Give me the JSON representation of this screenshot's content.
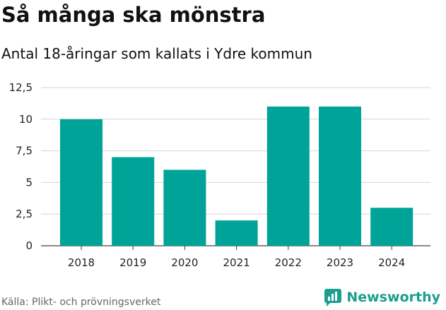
{
  "title": "Så många ska mönstra",
  "subtitle": "Antal 18-åringar som kallats i Ydre kommun",
  "source": "Källa: Plikt- och prövningsverket",
  "brand": {
    "name": "Newsworthy",
    "icon": "bar-chart-logo-icon",
    "color": "#1a9e8e"
  },
  "chart_data": {
    "type": "bar",
    "categories": [
      "2018",
      "2019",
      "2020",
      "2021",
      "2022",
      "2023",
      "2024"
    ],
    "values": [
      10,
      7,
      6,
      2,
      11,
      11,
      3
    ],
    "yticks": [
      "0",
      "2,5",
      "5",
      "7,5",
      "10",
      "12,5"
    ],
    "ylim": [
      0,
      12.5
    ],
    "grid": true,
    "bar_color": "#00a398",
    "xlabel": "",
    "ylabel": ""
  }
}
